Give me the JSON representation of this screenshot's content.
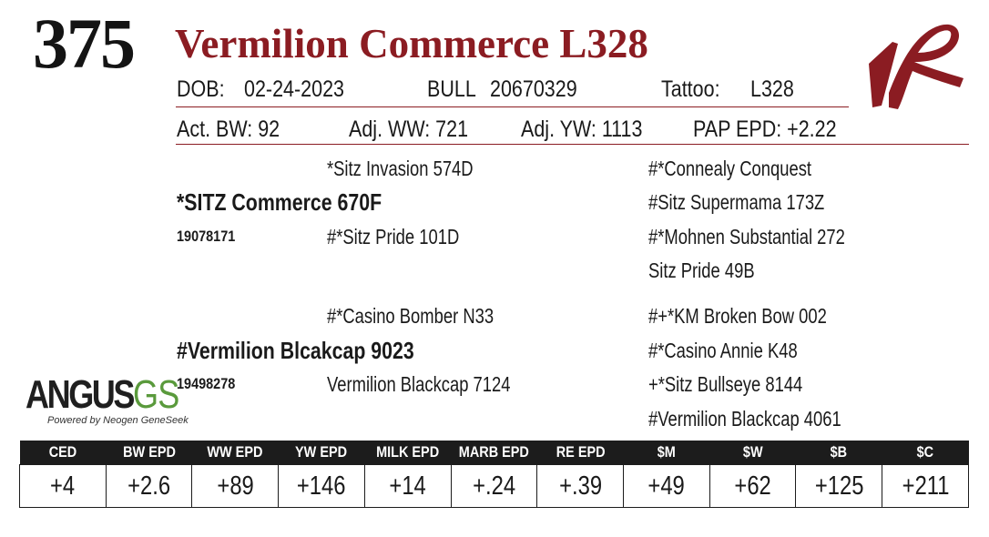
{
  "header": {
    "lot_number": "375",
    "animal_name": "Vermilion Commerce L328"
  },
  "logo": {
    "name": "vermilion-ranch-brand-icon",
    "color": "#8b1c22"
  },
  "info_row1": {
    "dob_label": "DOB:",
    "dob_value": "02-24-2023",
    "sex": "BULL",
    "reg_number": "20670329",
    "tattoo_label": "Tattoo:",
    "tattoo_value": "L328"
  },
  "info_row2": {
    "act_bw": "Act. BW: 92",
    "adj_ww": "Adj. WW: 721",
    "adj_yw": "Adj. YW: 1113",
    "pap_epd": "PAP EPD: +2.22"
  },
  "pedigree": {
    "sire": {
      "name": "*SITZ Commerce 670F",
      "reg": "19078171",
      "sire": "*Sitz Invasion 574D",
      "dam": "#*Sitz Pride 101D",
      "sire_sire": "#*Connealy Conquest",
      "sire_dam": "#Sitz Supermama 173Z",
      "dam_sire": "#*Mohnen Substantial 272",
      "dam_dam": "Sitz Pride 49B"
    },
    "dam": {
      "name": "#Vermilion Blcakcap 9023",
      "reg": "19498278",
      "sire": "#*Casino Bomber N33",
      "dam": "Vermilion Blackcap 7124",
      "sire_sire": "#+*KM Broken Bow 002",
      "sire_dam": "#*Casino Annie K48",
      "dam_sire": "+*Sitz Bullseye 8144",
      "dam_dam": "#Vermilion Blackcap 4061"
    }
  },
  "angus_logo": {
    "word": "ANGUS",
    "suffix": "GS",
    "tagline": "Powered by Neogen GeneSeek"
  },
  "epd_table": {
    "headers": [
      "CED",
      "BW EPD",
      "WW EPD",
      "YW EPD",
      "MILK EPD",
      "MARB EPD",
      "RE EPD",
      "$M",
      "$W",
      "$B",
      "$C"
    ],
    "values": [
      "+4",
      "+2.6",
      "+89",
      "+146",
      "+14",
      "+.24",
      "+.39",
      "+49",
      "+62",
      "+125",
      "+211"
    ]
  },
  "colors": {
    "accent": "#8b1c22",
    "header_bg": "#1c1c1c",
    "angus_green": "#5a9a3c"
  }
}
